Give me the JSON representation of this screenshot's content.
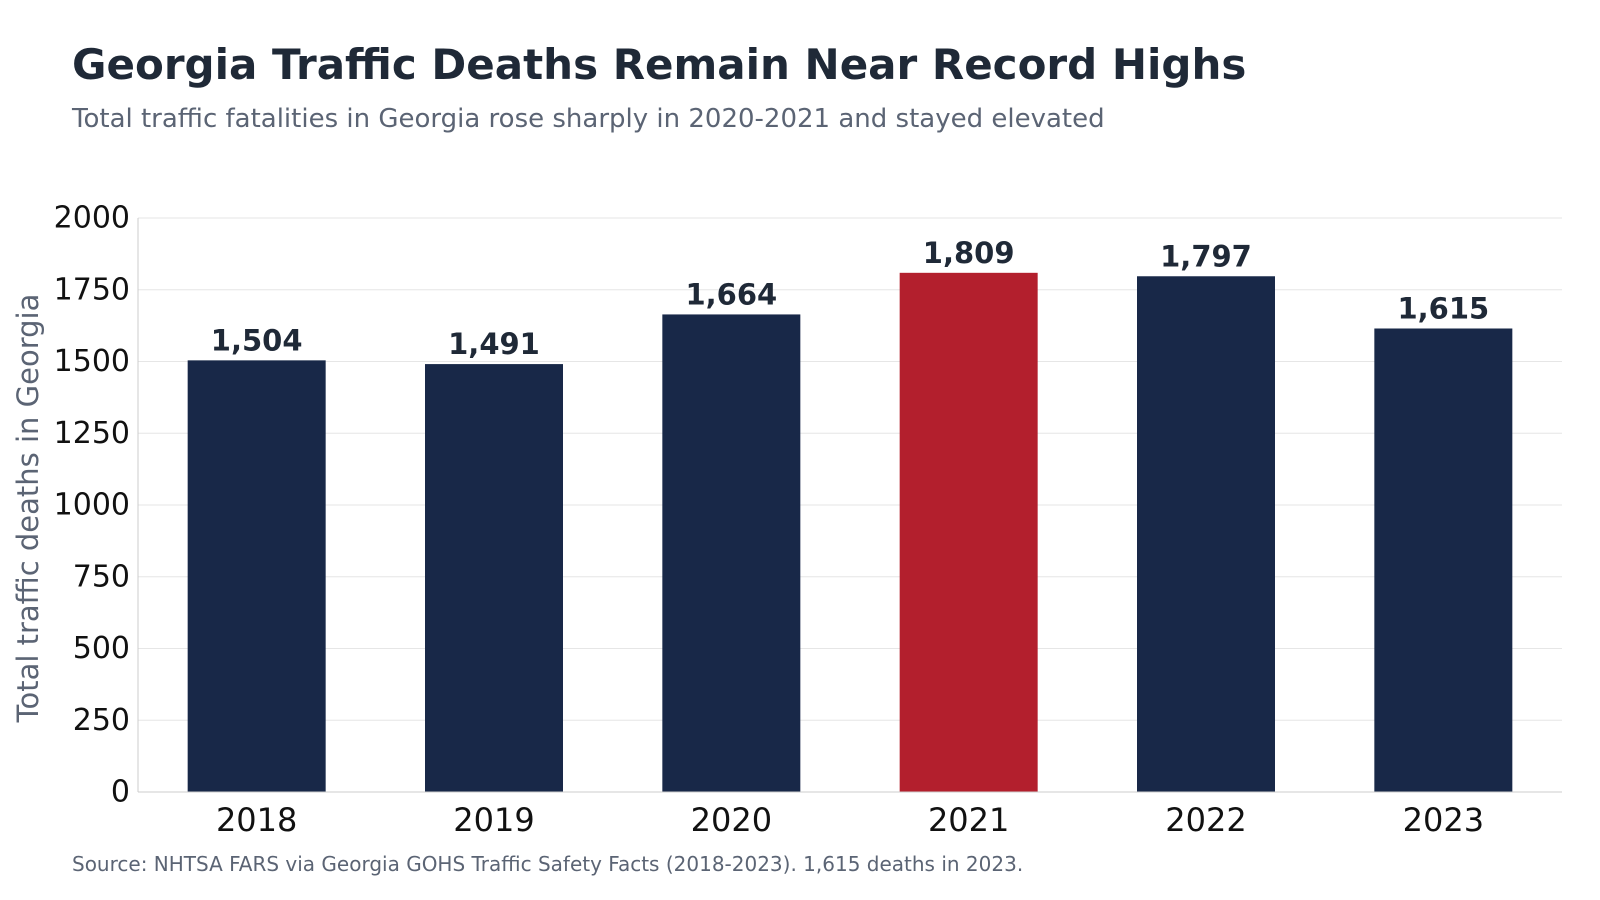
{
  "header": {
    "title": "Georgia Traffic Deaths Remain Near Record Highs",
    "subtitle": "Total traffic fatalities in Georgia rose sharply in 2020-2021 and stayed elevated"
  },
  "footer": {
    "source": "Source: NHTSA FARS via Georgia GOHS Traffic Safety Facts (2018-2023). 1,615 deaths in 2023."
  },
  "colors": {
    "bar": "#182848",
    "highlight": "#b31f2d",
    "grid": "#e6e6e6",
    "axis": "#cccccc"
  },
  "chart_data": {
    "type": "bar",
    "title": "Georgia Traffic Deaths Remain Near Record Highs",
    "subtitle": "Total traffic fatalities in Georgia rose sharply in 2020-2021 and stayed elevated",
    "xlabel": "",
    "ylabel": "Total traffic deaths in Georgia",
    "categories": [
      "2018",
      "2019",
      "2020",
      "2021",
      "2022",
      "2023"
    ],
    "values": [
      1504,
      1491,
      1664,
      1809,
      1797,
      1615
    ],
    "value_labels": [
      "1,504",
      "1,491",
      "1,664",
      "1,809",
      "1,797",
      "1,615"
    ],
    "highlight_category": "2021",
    "ylim": [
      0,
      2000
    ],
    "yticks": [
      0,
      250,
      500,
      750,
      1000,
      1250,
      1500,
      1750,
      2000
    ],
    "grid": true,
    "legend": "none"
  }
}
